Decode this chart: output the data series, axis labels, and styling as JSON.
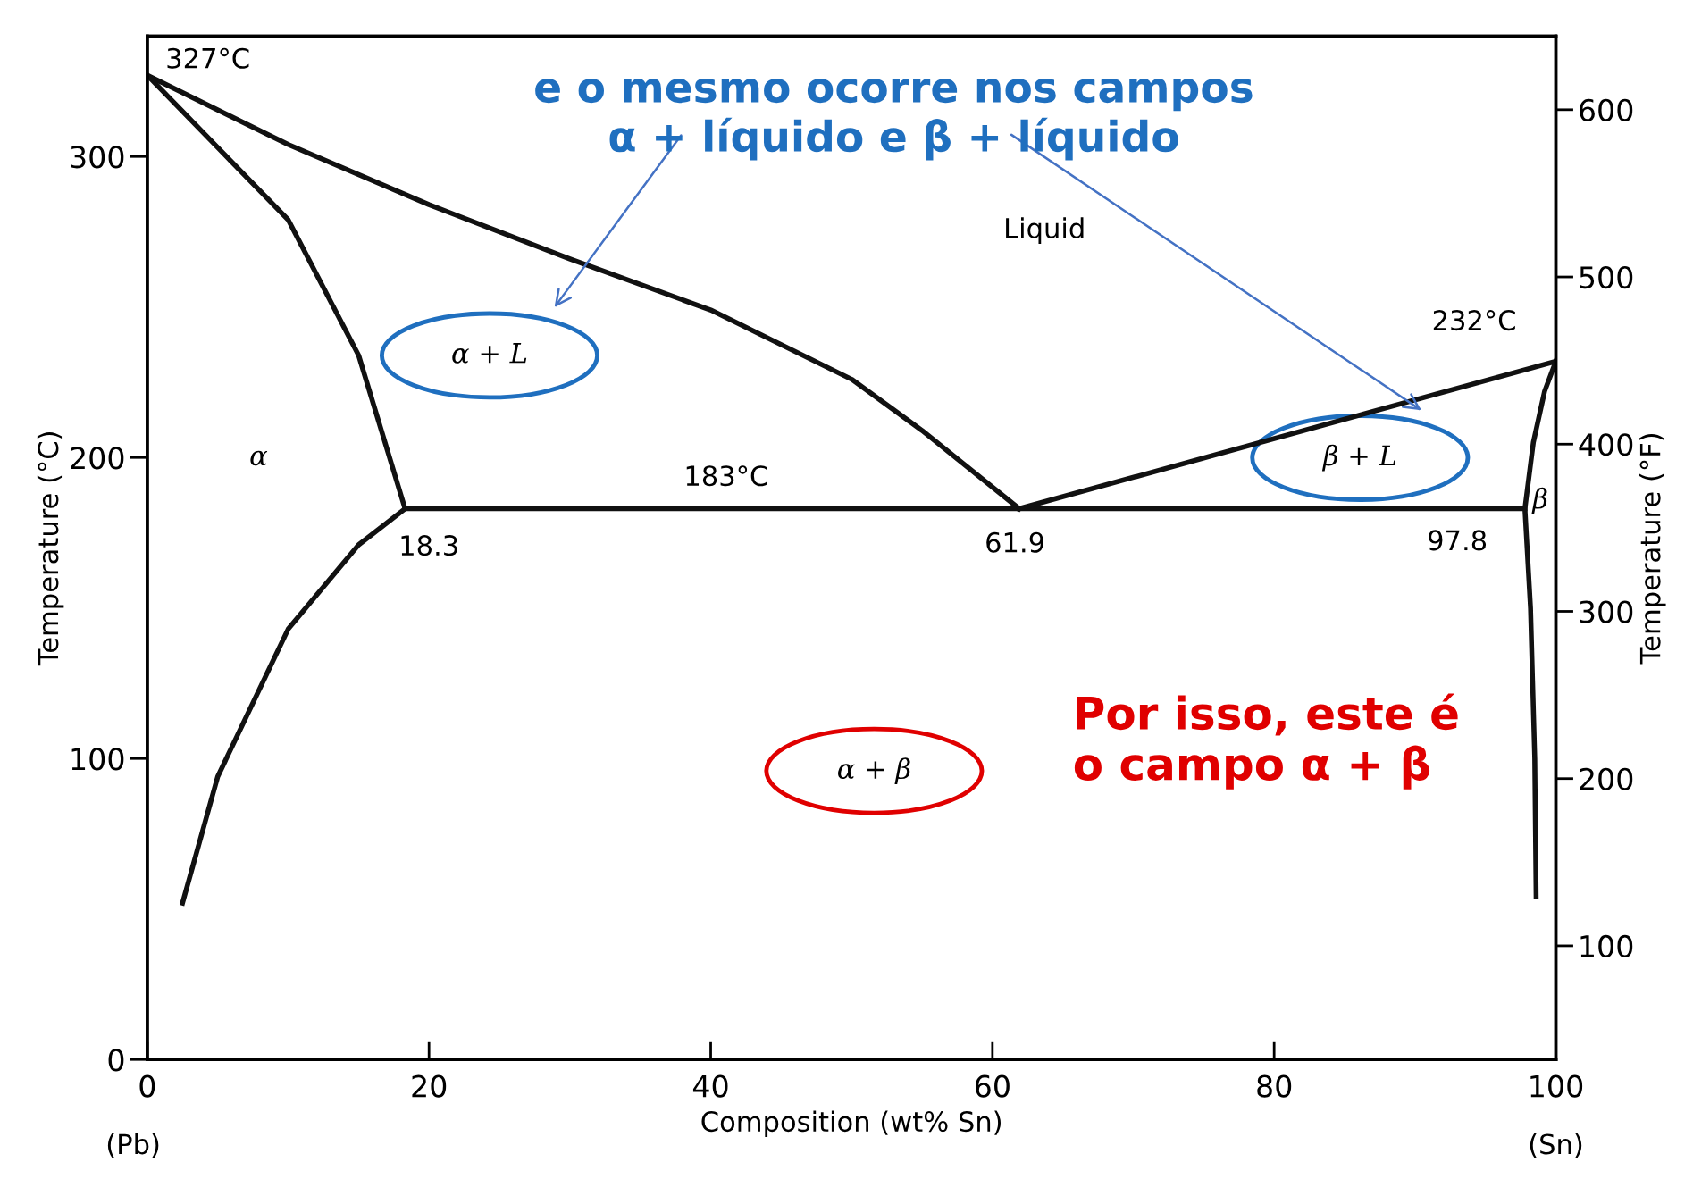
{
  "chart_data": {
    "type": "line",
    "title": "e o mesmo ocorre nos campos\nα + líquido e β + líquido",
    "xlabel": "Composition (wt% Sn)",
    "ylabel": "Temperature (°C)",
    "y2label": "Temperature (°F)",
    "xlim": [
      0,
      100
    ],
    "xticks": [
      0,
      20,
      40,
      60,
      80,
      100
    ],
    "ylim": [
      0,
      340
    ],
    "yticks": [
      0,
      100,
      200,
      300
    ],
    "y2lim": [
      32,
      644
    ],
    "y2ticks": [
      100,
      200,
      300,
      400,
      500,
      600
    ],
    "grid": false,
    "legend": false,
    "marker": "none",
    "line_style": "solid",
    "series": [
      {
        "color": "#111111",
        "x": [
          0,
          10,
          20,
          30,
          40,
          50,
          55,
          61.9
        ],
        "values": [
          327,
          304,
          284,
          266,
          249,
          226,
          209,
          183
        ]
      },
      {
        "color": "#111111",
        "x": [
          0,
          5,
          10,
          15,
          18.3
        ],
        "values": [
          327,
          303,
          279,
          234,
          183
        ]
      },
      {
        "color": "#111111",
        "x": [
          18.3,
          15,
          10,
          5,
          2.5
        ],
        "values": [
          183,
          171,
          143,
          94,
          52
        ]
      },
      {
        "color": "#111111",
        "x": [
          18.3,
          61.9,
          97.8
        ],
        "values": [
          183,
          183,
          183
        ]
      },
      {
        "color": "#111111",
        "x": [
          61.9,
          100
        ],
        "values": [
          183,
          232
        ]
      },
      {
        "color": "#111111",
        "x": [
          100,
          99.2,
          98.4,
          97.8,
          98.2,
          98.5,
          98.6
        ],
        "values": [
          232,
          222,
          205,
          183,
          150,
          100,
          54
        ]
      }
    ],
    "annotations": [
      "327°C",
      "232°C",
      "183°C",
      "18.3",
      "61.9",
      "97.8",
      "Liquid",
      "α",
      "β",
      "α + L",
      "β + L",
      "α + β",
      "Por isso, este é\no campo α + β",
      "(Pb)",
      "(Sn)"
    ]
  }
}
